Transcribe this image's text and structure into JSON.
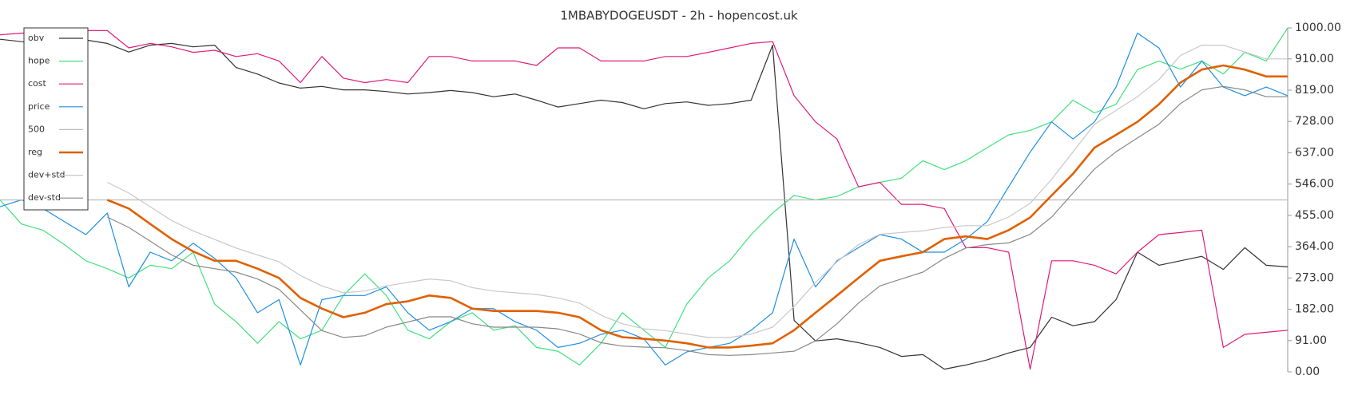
{
  "chart_data": {
    "type": "line",
    "title": "1MBABYDOGEUSDT - 2h - hopencost.uk",
    "ylim": [
      0,
      1000
    ],
    "yticks": [
      {
        "value": 0,
        "label": "0.00"
      },
      {
        "value": 91,
        "label": "91.00"
      },
      {
        "value": 182,
        "label": "182.00"
      },
      {
        "value": 273,
        "label": "273.00"
      },
      {
        "value": 364,
        "label": "364.00"
      },
      {
        "value": 455,
        "label": "455.00"
      },
      {
        "value": 546,
        "label": "546.00"
      },
      {
        "value": 637,
        "label": "637.00"
      },
      {
        "value": 728,
        "label": "728.00"
      },
      {
        "value": 819,
        "label": "819.00"
      },
      {
        "value": 910,
        "label": "910.00"
      },
      {
        "value": 1000,
        "label": "1000.00"
      }
    ],
    "legend": "upper left",
    "series": [
      {
        "name": "obv",
        "color": "#333333",
        "values": [
          967,
          960,
          955,
          960,
          965,
          955,
          930,
          950,
          955,
          945,
          950,
          885,
          866,
          840,
          825,
          830,
          820,
          820,
          815,
          808,
          812,
          818,
          812,
          800,
          808,
          790,
          770,
          780,
          790,
          783,
          765,
          780,
          785,
          775,
          780,
          790,
          950,
          150,
          90,
          96,
          85,
          71,
          45,
          50,
          8,
          20,
          35,
          55,
          71,
          159,
          134,
          146,
          210,
          348,
          310,
          323,
          336,
          298,
          361,
          310,
          305
        ]
      },
      {
        "name": "hope",
        "color": "#3ee27c",
        "values": [
          500,
          430,
          412,
          370,
          323,
          300,
          273,
          310,
          300,
          348,
          197,
          146,
          83,
          146,
          96,
          121,
          222,
          285,
          222,
          121,
          96,
          146,
          172,
          121,
          134,
          71,
          60,
          20,
          83,
          172,
          121,
          71,
          197,
          273,
          323,
          399,
          462,
          513,
          500,
          510,
          538,
          551,
          563,
          614,
          588,
          614,
          652,
          689,
          702,
          727,
          790,
          753,
          778,
          879,
          904,
          880,
          904,
          866,
          929,
          904,
          1000
        ]
      },
      {
        "name": "cost",
        "color": "#e0197d",
        "values": [
          980,
          985,
          985,
          995,
          992,
          992,
          942,
          955,
          945,
          929,
          935,
          917,
          925,
          904,
          841,
          917,
          854,
          841,
          850,
          841,
          917,
          917,
          904,
          904,
          904,
          891,
          942,
          942,
          904,
          904,
          904,
          917,
          917,
          929,
          942,
          955,
          960,
          803,
          727,
          677,
          538,
          551,
          487,
          487,
          475,
          361,
          361,
          348,
          8,
          323,
          323,
          310,
          285,
          348,
          399,
          405,
          412,
          71,
          109,
          115,
          121
        ]
      },
      {
        "name": "price",
        "color": "#1f8fe0",
        "values": [
          480,
          500,
          475,
          437,
          399,
          462,
          247,
          348,
          323,
          374,
          330,
          273,
          172,
          210,
          20,
          210,
          222,
          222,
          247,
          172,
          121,
          146,
          184,
          184,
          146,
          121,
          71,
          83,
          109,
          121,
          96,
          20,
          58,
          71,
          83,
          121,
          172,
          386,
          247,
          323,
          361,
          399,
          386,
          348,
          348,
          386,
          437,
          538,
          639,
          727,
          677,
          727,
          828,
          985,
          942,
          828,
          904,
          828,
          803,
          828,
          803
        ]
      },
      {
        "name": "500",
        "color": "#bbbbbb",
        "values": [
          500,
          500,
          500,
          500,
          500,
          500,
          500,
          500,
          500,
          500,
          500,
          500,
          500,
          500,
          500,
          500,
          500,
          500,
          500,
          500,
          500,
          500,
          500,
          500,
          500,
          500,
          500,
          500,
          500,
          500,
          500,
          500,
          500,
          500,
          500,
          500,
          500,
          500,
          500,
          500,
          500,
          500,
          500,
          500,
          500,
          500,
          500,
          500,
          500,
          500,
          500,
          500,
          500,
          500,
          500,
          500,
          500,
          500,
          500,
          500,
          500
        ]
      },
      {
        "name": "reg",
        "color": "#e06000",
        "values": [
          null,
          null,
          null,
          null,
          null,
          500,
          475,
          430,
          386,
          350,
          323,
          323,
          300,
          273,
          215,
          184,
          159,
          172,
          197,
          205,
          222,
          215,
          184,
          177,
          177,
          177,
          172,
          159,
          121,
          101,
          96,
          91,
          83,
          71,
          71,
          76,
          83,
          121,
          172,
          222,
          273,
          323,
          336,
          348,
          386,
          394,
          386,
          412,
          449,
          513,
          576,
          652,
          689,
          727,
          778,
          841,
          879,
          891,
          879,
          859,
          859
        ]
      },
      {
        "name": "dev+std",
        "color": "#c8c8c8",
        "values": [
          null,
          null,
          null,
          null,
          null,
          551,
          520,
          480,
          440,
          410,
          385,
          360,
          340,
          320,
          280,
          250,
          230,
          235,
          250,
          260,
          270,
          265,
          245,
          235,
          230,
          225,
          215,
          200,
          165,
          140,
          125,
          120,
          110,
          100,
          100,
          110,
          130,
          190,
          260,
          320,
          370,
          400,
          405,
          410,
          420,
          425,
          425,
          450,
          490,
          560,
          640,
          720,
          760,
          800,
          850,
          920,
          950,
          950,
          930,
          910,
          910
        ]
      },
      {
        "name": "dev-std",
        "color": "#888888",
        "values": [
          null,
          null,
          null,
          null,
          null,
          450,
          420,
          380,
          340,
          310,
          300,
          290,
          270,
          240,
          180,
          120,
          100,
          105,
          130,
          145,
          160,
          160,
          140,
          130,
          130,
          130,
          125,
          110,
          85,
          75,
          72,
          70,
          62,
          50,
          48,
          50,
          55,
          60,
          90,
          140,
          200,
          250,
          270,
          290,
          330,
          360,
          370,
          375,
          400,
          450,
          520,
          590,
          640,
          680,
          720,
          780,
          820,
          830,
          820,
          800,
          800
        ]
      }
    ]
  }
}
